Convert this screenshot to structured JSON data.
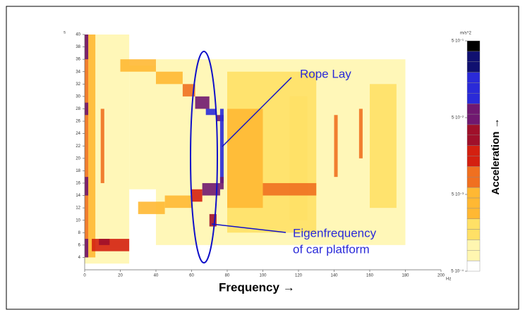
{
  "chart_data": {
    "type": "heatmap",
    "xlabel": "Frequency →",
    "xunit": "Hz",
    "yunit": "s",
    "xlim": [
      0,
      200
    ],
    "xticks": [
      0,
      20,
      40,
      60,
      80,
      100,
      120,
      140,
      160,
      180,
      200
    ],
    "ylim": [
      2,
      40
    ],
    "yticks": [
      4,
      6,
      8,
      10,
      12,
      14,
      16,
      18,
      20,
      22,
      24,
      26,
      28,
      30,
      32,
      34,
      36,
      38,
      40
    ],
    "clim": [
      0.0005,
      0.5
    ],
    "ctick_values": [
      {
        "value": 0.5,
        "label": "5·10⁻¹"
      },
      {
        "value": 0.05,
        "label": "5·10⁻²"
      },
      {
        "value": 0.005,
        "label": "5·10⁻³"
      },
      {
        "value": 0.0005,
        "label": "5·10⁻⁴"
      }
    ],
    "cunit": "m/s^2",
    "clabel": "Acceleration →",
    "annotations": [
      "Rope Lay",
      "Eigenfrequency",
      "of car platform"
    ],
    "regions": [
      {
        "f": [
          0,
          25
        ],
        "t": [
          3,
          40
        ],
        "a": 0.0012
      },
      {
        "f": [
          40,
          180
        ],
        "t": [
          6,
          36
        ],
        "a": 0.001
      },
      {
        "f": [
          80,
          130
        ],
        "t": [
          8,
          34
        ],
        "a": 0.0015
      },
      {
        "f": [
          25,
          40
        ],
        "t": [
          15,
          35
        ],
        "a": 0.0008
      },
      {
        "f": [
          2,
          6
        ],
        "t": [
          4,
          40
        ],
        "a": 0.003
      },
      {
        "f": [
          0,
          2
        ],
        "t": [
          4,
          40
        ],
        "a": 0.01
      },
      {
        "f": [
          0,
          2
        ],
        "t": [
          4,
          7
        ],
        "a": 0.08
      },
      {
        "f": [
          0,
          2
        ],
        "t": [
          14,
          17
        ],
        "a": 0.08
      },
      {
        "f": [
          0,
          2
        ],
        "t": [
          27,
          29
        ],
        "a": 0.05
      },
      {
        "f": [
          0,
          2
        ],
        "t": [
          36,
          40
        ],
        "a": 0.05
      },
      {
        "f": [
          4,
          25
        ],
        "t": [
          5,
          7
        ],
        "a": 0.012
      },
      {
        "f": [
          8,
          14
        ],
        "t": [
          6,
          7
        ],
        "a": 0.04
      },
      {
        "f": [
          9,
          11
        ],
        "t": [
          16,
          28
        ],
        "a": 0.006
      },
      {
        "f": [
          80,
          100
        ],
        "t": [
          12,
          28
        ],
        "a": 0.003
      },
      {
        "f": [
          115,
          125
        ],
        "t": [
          10,
          30
        ],
        "a": 0.002
      },
      {
        "f": [
          160,
          175
        ],
        "t": [
          12,
          32
        ],
        "a": 0.002
      },
      {
        "f": [
          100,
          130
        ],
        "t": [
          14,
          16
        ],
        "a": 0.006
      },
      {
        "f": [
          140,
          142
        ],
        "t": [
          17,
          27
        ],
        "a": 0.008
      },
      {
        "f": [
          154,
          156
        ],
        "t": [
          20,
          28
        ],
        "a": 0.01
      },
      {
        "f": [
          20,
          40
        ],
        "t": [
          34,
          36
        ],
        "a": 0.003
      },
      {
        "f": [
          40,
          55
        ],
        "t": [
          32,
          34
        ],
        "a": 0.004
      },
      {
        "f": [
          55,
          62
        ],
        "t": [
          30,
          32
        ],
        "a": 0.008
      },
      {
        "f": [
          62,
          70
        ],
        "t": [
          28,
          30
        ],
        "a": 0.05
      },
      {
        "f": [
          68,
          74
        ],
        "t": [
          27,
          28
        ],
        "a": 0.1
      },
      {
        "f": [
          74,
          78
        ],
        "t": [
          26,
          27
        ],
        "a": 0.06
      },
      {
        "f": [
          76,
          78
        ],
        "t": [
          16,
          28
        ],
        "a": 0.1
      },
      {
        "f": [
          30,
          45
        ],
        "t": [
          11,
          13
        ],
        "a": 0.003
      },
      {
        "f": [
          45,
          60
        ],
        "t": [
          12,
          14
        ],
        "a": 0.005
      },
      {
        "f": [
          60,
          66
        ],
        "t": [
          13,
          15
        ],
        "a": 0.02
      },
      {
        "f": [
          66,
          76
        ],
        "t": [
          14,
          16
        ],
        "a": 0.08
      },
      {
        "f": [
          76,
          78
        ],
        "t": [
          15,
          17
        ],
        "a": 0.05
      },
      {
        "f": [
          70,
          74
        ],
        "t": [
          9,
          11
        ],
        "a": 0.03
      }
    ]
  }
}
